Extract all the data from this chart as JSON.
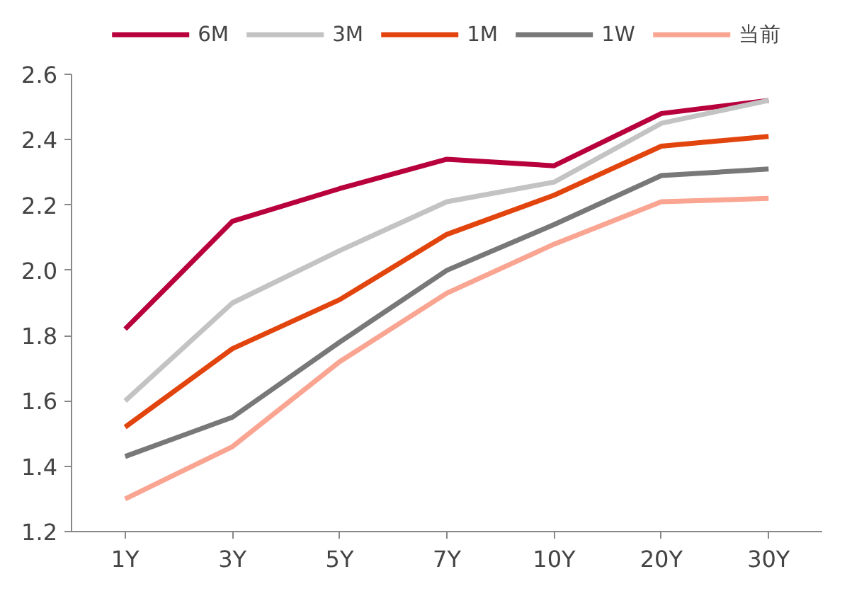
{
  "chart_data": {
    "type": "line",
    "categories": [
      "1Y",
      "3Y",
      "5Y",
      "7Y",
      "10Y",
      "20Y",
      "30Y"
    ],
    "series": [
      {
        "name": "6M",
        "color": "#b8003c",
        "values": [
          1.82,
          2.15,
          2.25,
          2.34,
          2.32,
          2.48,
          2.52
        ]
      },
      {
        "name": "3M",
        "color": "#c3c3c3",
        "values": [
          1.6,
          1.9,
          2.06,
          2.21,
          2.27,
          2.45,
          2.52
        ]
      },
      {
        "name": "1M",
        "color": "#e2440e",
        "values": [
          1.52,
          1.76,
          1.91,
          2.11,
          2.23,
          2.38,
          2.41
        ]
      },
      {
        "name": "1W",
        "color": "#787878",
        "values": [
          1.43,
          1.55,
          1.78,
          2.0,
          2.14,
          2.29,
          2.31
        ]
      },
      {
        "name": "当前",
        "color": "#f9a592",
        "values": [
          1.3,
          1.46,
          1.72,
          1.93,
          2.08,
          2.21,
          2.22
        ]
      }
    ],
    "ylim": [
      1.2,
      2.6
    ],
    "yticks": [
      {
        "value": 1.2,
        "label": "1.2"
      },
      {
        "value": 1.4,
        "label": "1.4"
      },
      {
        "value": 1.6,
        "label": "1.6"
      },
      {
        "value": 1.8,
        "label": "1.8"
      },
      {
        "value": 2.0,
        "label": "2.0"
      },
      {
        "value": 2.2,
        "label": "2.2"
      },
      {
        "value": 2.4,
        "label": "2.4"
      },
      {
        "value": 2.6,
        "label": "2.6"
      }
    ],
    "grid": false,
    "legend": "top",
    "marker": "none",
    "line_style": "solid"
  }
}
